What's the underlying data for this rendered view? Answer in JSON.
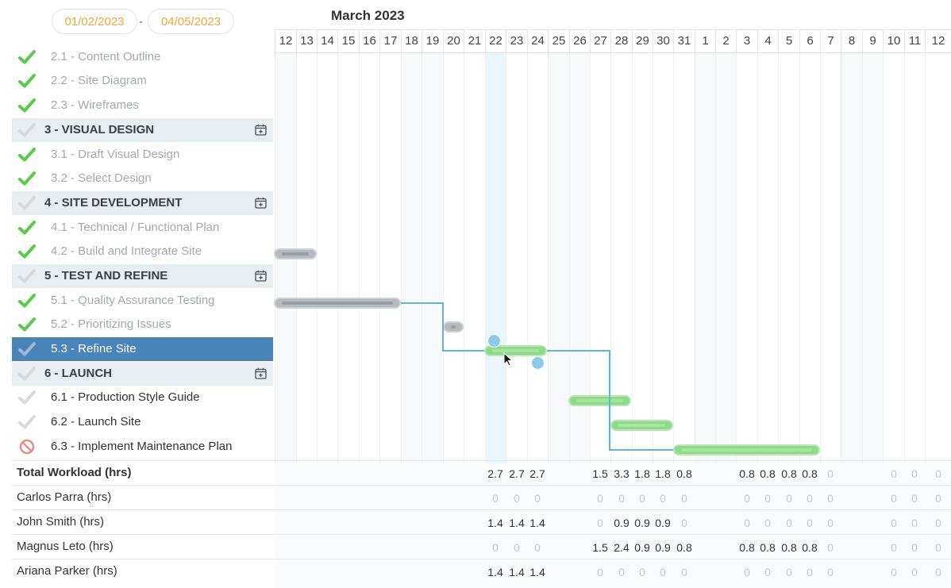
{
  "date_range": {
    "start": "01/02/2023",
    "separator": "-",
    "end": "04/05/2023"
  },
  "month_label": "March 2023",
  "days": [
    "12",
    "13",
    "14",
    "15",
    "16",
    "17",
    "18",
    "19",
    "20",
    "21",
    "22",
    "23",
    "24",
    "25",
    "26",
    "27",
    "28",
    "29",
    "30",
    "31",
    "1",
    "2",
    "3",
    "4",
    "5",
    "6",
    "7",
    "8",
    "9",
    "10",
    "11",
    "12"
  ],
  "weekend_indices": [
    0,
    6,
    7,
    13,
    14,
    20,
    21,
    27,
    28
  ],
  "today_index": 10,
  "tasks": [
    {
      "label": "2.1 - Content Outline",
      "type": "sub",
      "status": "done"
    },
    {
      "label": "2.2 - Site Diagram",
      "type": "sub",
      "status": "done"
    },
    {
      "label": "2.3 - Wireframes",
      "type": "sub",
      "status": "done"
    },
    {
      "label": "3 - VISUAL DESIGN",
      "type": "group",
      "status": "group"
    },
    {
      "label": "3.1 - Draft Visual Design",
      "type": "sub",
      "status": "done"
    },
    {
      "label": "3.2 - Select Design",
      "type": "sub",
      "status": "done"
    },
    {
      "label": "4 - SITE DEVELOPMENT",
      "type": "group",
      "status": "group"
    },
    {
      "label": "4.1 - Technical / Functional Plan",
      "type": "sub",
      "status": "done"
    },
    {
      "label": "4.2 - Build and Integrate Site",
      "type": "sub",
      "status": "done"
    },
    {
      "label": "5 - TEST AND REFINE",
      "type": "group",
      "status": "group"
    },
    {
      "label": "5.1 - Quality Assurance Testing",
      "type": "sub",
      "status": "done"
    },
    {
      "label": "5.2 - Prioritizing Issues",
      "type": "sub",
      "status": "done"
    },
    {
      "label": "5.3 - Refine Site",
      "type": "sub",
      "status": "selected"
    },
    {
      "label": "6 - LAUNCH",
      "type": "group",
      "status": "group"
    },
    {
      "label": "6.1 - Production Style Guide",
      "type": "sub",
      "status": "open"
    },
    {
      "label": "6.2 - Launch Site",
      "type": "sub",
      "status": "open"
    },
    {
      "label": "6.3 - Implement Maintenance Plan",
      "type": "sub",
      "status": "blocked"
    }
  ],
  "workload": [
    {
      "label": "Total Workload (hrs)",
      "total": true,
      "values": {
        "10": "2.7",
        "11": "2.7",
        "12": "2.7",
        "15": "1.5",
        "16": "3.3",
        "17": "1.8",
        "18": "1.8",
        "19": "0.8",
        "22": "0.8",
        "23": "0.8",
        "24": "0.8",
        "25": "0.8",
        "26": "0",
        "29": "0",
        "30": "0",
        "31": "0"
      }
    },
    {
      "label": "Carlos Parra (hrs)",
      "total": false,
      "values": {
        "10": "0",
        "11": "0",
        "12": "0",
        "15": "0",
        "16": "0",
        "17": "0",
        "18": "0",
        "19": "0",
        "22": "0",
        "23": "0",
        "24": "0",
        "25": "0",
        "26": "0",
        "29": "0",
        "30": "0",
        "31": "0"
      }
    },
    {
      "label": "John Smith (hrs)",
      "total": false,
      "values": {
        "10": "1.4",
        "11": "1.4",
        "12": "1.4",
        "15": "0",
        "16": "0.9",
        "17": "0.9",
        "18": "0.9",
        "19": "0",
        "22": "0",
        "23": "0",
        "24": "0",
        "25": "0",
        "26": "0",
        "29": "0",
        "30": "0",
        "31": "0"
      }
    },
    {
      "label": "Magnus Leto (hrs)",
      "total": false,
      "values": {
        "10": "0",
        "11": "0",
        "12": "0",
        "15": "1.5",
        "16": "2.4",
        "17": "0.9",
        "18": "0.9",
        "19": "0.8",
        "22": "0.8",
        "23": "0.8",
        "24": "0.8",
        "25": "0.8",
        "26": "0",
        "29": "0",
        "30": "0",
        "31": "0"
      }
    },
    {
      "label": "Ariana Parker (hrs)",
      "total": false,
      "values": {
        "10": "1.4",
        "11": "1.4",
        "12": "1.4",
        "15": "0",
        "16": "0",
        "17": "0",
        "18": "0",
        "19": "0",
        "22": "0",
        "23": "0",
        "24": "0",
        "25": "0",
        "26": "0",
        "29": "0",
        "30": "0",
        "31": "0"
      }
    }
  ],
  "colors": {
    "accent_date": "#f0a63a",
    "selected_row": "#4a84b9",
    "done_check": "#5bc94a",
    "bar_done": "#b7babd",
    "bar_active": "#8fd98a",
    "dependency_line": "#5fb8d0",
    "blocked_icon": "#e88a8a"
  },
  "icons": {
    "done": "check-icon",
    "group": "calendar-add-icon",
    "blocked": "blocked-icon"
  }
}
